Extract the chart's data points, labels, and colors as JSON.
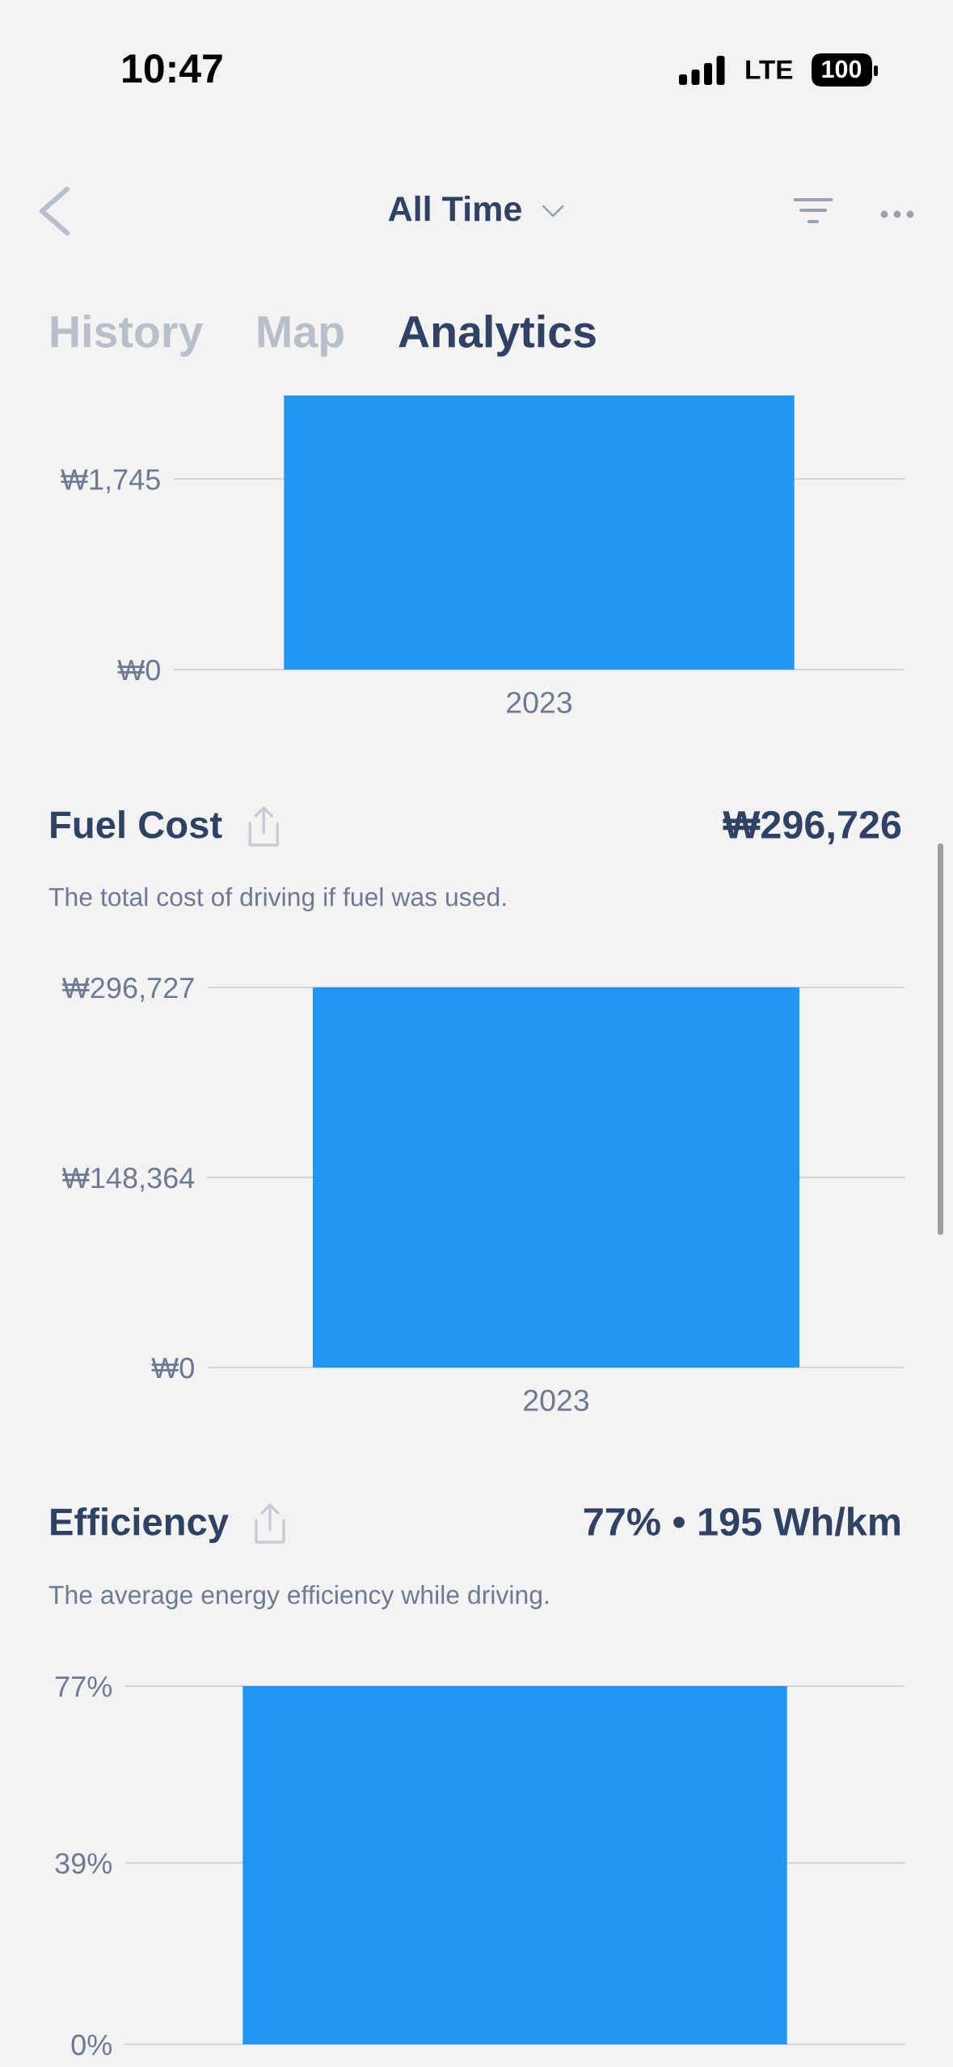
{
  "chart_data": [
    {
      "type": "other",
      "annotations": [
        "10:47",
        "LTE",
        "100",
        "All Time",
        "History",
        "Map",
        "Analytics"
      ]
    },
    {
      "type": "bar",
      "categories": [
        "2023"
      ],
      "values": [
        2510
      ],
      "color": "#2196f3",
      "ylim": [
        0,
        2510
      ],
      "yticks": [
        {
          "value": 0,
          "label": "₩0"
        },
        {
          "value": 1745,
          "label": "₩1,745"
        }
      ],
      "grid": "y"
    },
    {
      "type": "bar",
      "title": "Fuel Cost",
      "subtitle": "The total cost of driving if fuel was used.",
      "annotations": [
        "₩296,726"
      ],
      "categories": [
        "2023"
      ],
      "values": [
        296726
      ],
      "color": "#2196f3",
      "ylim": [
        0,
        296727
      ],
      "yticks": [
        {
          "value": 0,
          "label": "₩0"
        },
        {
          "value": 148364,
          "label": "₩148,364"
        },
        {
          "value": 296727,
          "label": "₩296,727"
        }
      ],
      "grid": "y"
    },
    {
      "type": "bar",
      "title": "Efficiency",
      "subtitle": "The average energy efficiency while driving.",
      "annotations": [
        "77% • 195 Wh/km"
      ],
      "categories": [
        null
      ],
      "values": [
        77
      ],
      "color": "#2196f3",
      "ylim": [
        0,
        77
      ],
      "yticks": [
        {
          "value": 0,
          "label": "0%"
        },
        {
          "value": 39,
          "label": "39%"
        },
        {
          "value": 77,
          "label": "77%"
        }
      ],
      "grid": "y"
    }
  ]
}
